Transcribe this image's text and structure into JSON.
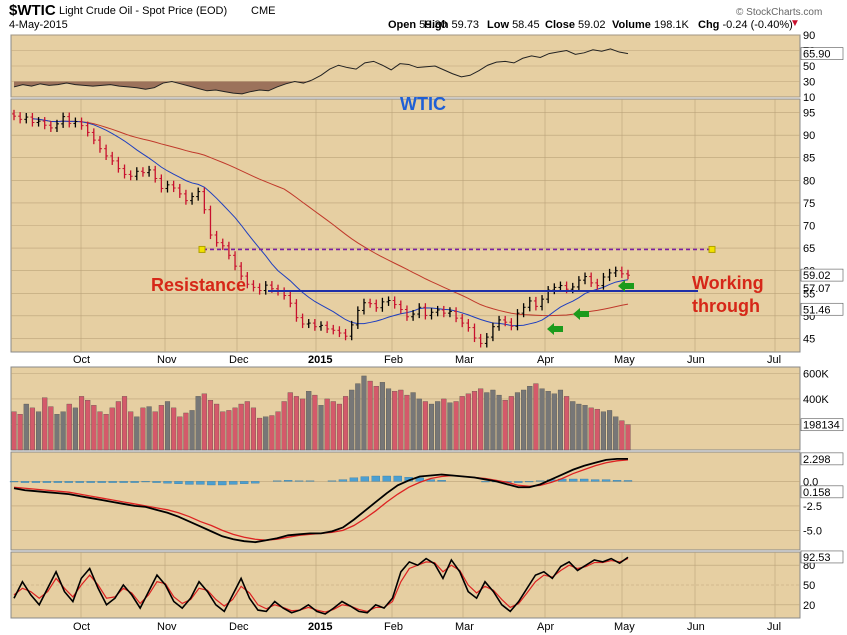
{
  "header": {
    "symbol": "$WTIC",
    "name": "Light Crude Oil - Spot Price (EOD)",
    "exchange": "CME",
    "date": "4-May-2015",
    "ohlc": [
      {
        "label": "Open",
        "value": "59.30"
      },
      {
        "label": "High",
        "value": "59.73"
      },
      {
        "label": "Low",
        "value": "58.45"
      },
      {
        "label": "Close",
        "value": "59.02"
      },
      {
        "label": "Volume",
        "value": "198.1K"
      },
      {
        "label": "Chg",
        "value": "-0.24 (-0.40%)"
      }
    ],
    "watermark": "© StockCharts.com"
  },
  "colors": {
    "panel_bg": "#e6cfa2",
    "up": "#000000",
    "down": "#c8102e",
    "sma_short": "#1f3fbf",
    "sma_long": "#c0392b",
    "resistance": "#1e2fa8",
    "dashed": "#7b1fa2",
    "arrow": "#1c9b1c",
    "vol_up": "#777777",
    "vol_down": "#d45a6a",
    "hist": "#4b9fd1",
    "annotation": "#d62718",
    "title_blue": "#1f5fd6"
  },
  "annotations": {
    "title": "WTIC",
    "resistance": "Resistance",
    "working_line1": "Working",
    "working_line2": "through"
  },
  "chart_data": [
    {
      "id": "rsi",
      "type": "line",
      "ylim": [
        10,
        90
      ],
      "tick_labels": [
        "90",
        "70",
        "50",
        "30",
        "10"
      ],
      "last_value_label": "65.90",
      "series": [
        {
          "values": [
            23,
            26,
            24,
            27,
            25,
            26,
            28,
            26,
            25,
            24,
            25,
            26,
            24,
            23,
            22,
            20,
            22,
            28,
            30,
            27,
            24,
            21,
            18,
            19,
            17,
            15,
            14,
            17,
            19,
            18,
            23,
            27,
            30,
            28,
            32,
            38,
            46,
            51,
            48,
            46,
            54,
            56,
            51,
            45,
            53,
            52,
            48,
            49,
            50,
            45,
            40,
            36,
            38,
            44,
            51,
            55,
            56,
            54,
            60,
            63,
            61,
            66,
            68,
            70,
            65,
            67,
            71,
            69,
            72,
            68,
            66
          ]
        }
      ]
    },
    {
      "id": "price",
      "type": "candlestick",
      "title": "WTIC",
      "ylim": [
        42,
        98
      ],
      "tick_labels": [
        "95",
        "90",
        "85",
        "80",
        "75",
        "70",
        "65",
        "60",
        "55",
        "50",
        "45"
      ],
      "x_labels": [
        "Oct",
        "Nov",
        "Dec",
        "2015",
        "Feb",
        "Mar",
        "Apr",
        "May",
        "Jun",
        "Jul"
      ],
      "close_values": [
        94.2,
        93.5,
        94.0,
        92.8,
        93.1,
        92.2,
        91.6,
        92.5,
        94.1,
        92.6,
        93.0,
        92.1,
        90.6,
        88.9,
        87.0,
        85.4,
        84.3,
        82.6,
        81.3,
        80.9,
        82.0,
        81.7,
        82.3,
        80.4,
        78.2,
        79.0,
        78.3,
        77.0,
        75.5,
        76.4,
        77.5,
        73.5,
        67.9,
        66.2,
        65.5,
        63.4,
        61.0,
        58.8,
        57.0,
        56.3,
        55.6,
        56.8,
        56.0,
        55.4,
        54.5,
        52.8,
        49.6,
        48.2,
        48.4,
        47.6,
        47.9,
        47.1,
        46.8,
        46.2,
        45.5,
        48.0,
        51.2,
        52.9,
        52.7,
        51.8,
        53.1,
        53.4,
        52.5,
        51.4,
        49.8,
        50.4,
        51.9,
        50.1,
        50.8,
        51.3,
        50.6,
        51.0,
        49.5,
        48.4,
        47.4,
        45.1,
        43.9,
        45.3,
        47.6,
        49.1,
        48.6,
        47.7,
        50.6,
        51.9,
        53.3,
        52.1,
        53.7,
        55.7,
        56.3,
        56.7,
        55.9,
        56.4,
        57.9,
        58.7,
        57.3,
        56.7,
        58.6,
        59.5,
        60.0,
        59.3,
        59.0
      ],
      "last_price_label": "59.02",
      "sma_short_label": "57.07",
      "sma_long_label": "51.46",
      "resistance_level": 55.5,
      "dashed_level": 64.7
    },
    {
      "id": "volume",
      "type": "bar",
      "tick_labels": [
        "600K",
        "400K",
        "200K"
      ],
      "last_value_label": "198134",
      "values": [
        300,
        280,
        360,
        330,
        300,
        410,
        340,
        280,
        300,
        360,
        330,
        420,
        390,
        350,
        300,
        280,
        330,
        380,
        420,
        300,
        260,
        330,
        340,
        300,
        350,
        380,
        330,
        260,
        290,
        310,
        420,
        440,
        390,
        360,
        300,
        310,
        330,
        360,
        380,
        330,
        250,
        260,
        270,
        300,
        380,
        450,
        420,
        400,
        460,
        430,
        350,
        400,
        380,
        360,
        420,
        470,
        520,
        580,
        540,
        500,
        530,
        480,
        460,
        470,
        430,
        450,
        400,
        380,
        360,
        380,
        400,
        370,
        380,
        420,
        440,
        460,
        480,
        450,
        470,
        430,
        390,
        420,
        450,
        470,
        500,
        520,
        480,
        460,
        440,
        470,
        420,
        380,
        360,
        350,
        330,
        320,
        300,
        310,
        260,
        230,
        198
      ]
    },
    {
      "id": "macd",
      "type": "line",
      "ylim": [
        -7,
        3
      ],
      "tick_labels": [
        "0.0",
        "-2.5",
        "-5.0"
      ],
      "macd_label": "2.298",
      "hist_label": "0.158",
      "series": [
        {
          "values": [
            -0.7,
            -0.9,
            -1.0,
            -1.1,
            -1.2,
            -1.3,
            -1.5,
            -1.7,
            -1.9,
            -2.1,
            -2.3,
            -2.5,
            -2.6,
            -2.9,
            -3.2,
            -3.6,
            -4.1,
            -4.6,
            -5.1,
            -5.6,
            -5.9,
            -6.1,
            -6.2,
            -6.0,
            -5.8,
            -5.5,
            -5.4,
            -5.3,
            -5.3,
            -5.1,
            -4.7,
            -3.9,
            -3.0,
            -2.1,
            -1.2,
            -0.4,
            0.1,
            0.5,
            0.6,
            0.7,
            0.6,
            0.5,
            0.4,
            0.2,
            0.0,
            -0.3,
            -0.6,
            -0.6,
            -0.3,
            0.2,
            0.7,
            1.2,
            1.6,
            1.9,
            2.2,
            2.3,
            2.3
          ]
        },
        {
          "values": [
            -0.6,
            -0.7,
            -0.8,
            -0.9,
            -1.0,
            -1.1,
            -1.3,
            -1.5,
            -1.7,
            -1.9,
            -2.1,
            -2.3,
            -2.5,
            -2.7,
            -2.9,
            -3.2,
            -3.6,
            -4.1,
            -4.5,
            -5.0,
            -5.4,
            -5.7,
            -5.9,
            -6.0,
            -5.9,
            -5.7,
            -5.5,
            -5.4,
            -5.3,
            -5.2,
            -5.0,
            -4.5,
            -3.8,
            -3.0,
            -2.1,
            -1.3,
            -0.6,
            -0.1,
            0.3,
            0.5,
            0.6,
            0.5,
            0.4,
            0.3,
            0.1,
            -0.1,
            -0.4,
            -0.5,
            -0.4,
            -0.1,
            0.3,
            0.8,
            1.2,
            1.6,
            1.9,
            2.1,
            2.2
          ]
        },
        {
          "values": [
            -0.1,
            -0.2,
            -0.2,
            -0.2,
            -0.2,
            -0.2,
            -0.2,
            -0.2,
            -0.2,
            -0.2,
            -0.2,
            -0.2,
            -0.1,
            -0.2,
            -0.3,
            -0.4,
            -0.5,
            -0.5,
            -0.6,
            -0.6,
            -0.5,
            -0.4,
            -0.3,
            0.0,
            0.1,
            0.2,
            0.1,
            0.1,
            0.0,
            0.1,
            0.3,
            0.6,
            0.8,
            0.9,
            0.9,
            0.9,
            0.7,
            0.6,
            0.3,
            0.2,
            0.0,
            0.0,
            0.0,
            -0.1,
            -0.1,
            -0.2,
            -0.2,
            -0.1,
            0.1,
            0.3,
            0.4,
            0.4,
            0.4,
            0.3,
            0.3,
            0.2,
            0.16
          ]
        }
      ]
    },
    {
      "id": "stochastic",
      "type": "line",
      "ylim": [
        0,
        100
      ],
      "tick_labels": [
        "80",
        "50",
        "20"
      ],
      "last_value_label": "92.53",
      "x_labels": [
        "Oct",
        "Nov",
        "Dec",
        "2015",
        "Feb",
        "Mar",
        "Apr",
        "May",
        "Jun",
        "Jul"
      ],
      "series": [
        {
          "values": [
            30,
            55,
            35,
            20,
            45,
            70,
            40,
            25,
            60,
            75,
            45,
            20,
            30,
            50,
            35,
            15,
            40,
            65,
            50,
            25,
            15,
            30,
            55,
            40,
            20,
            10,
            35,
            60,
            30,
            12,
            10,
            25,
            15,
            8,
            12,
            20,
            10,
            6,
            15,
            25,
            18,
            10,
            8,
            20,
            15,
            30,
            70,
            85,
            80,
            90,
            82,
            60,
            88,
            70,
            40,
            30,
            55,
            40,
            20,
            10,
            25,
            45,
            65,
            70,
            60,
            78,
            85,
            72,
            80,
            88,
            85,
            90,
            83,
            92
          ]
        },
        {
          "values": [
            35,
            45,
            40,
            30,
            40,
            60,
            45,
            32,
            50,
            65,
            50,
            30,
            32,
            45,
            38,
            22,
            35,
            55,
            52,
            32,
            22,
            28,
            45,
            42,
            28,
            18,
            28,
            48,
            38,
            20,
            14,
            20,
            16,
            11,
            12,
            16,
            12,
            9,
            13,
            20,
            18,
            13,
            10,
            16,
            16,
            25,
            55,
            75,
            80,
            85,
            84,
            70,
            80,
            72,
            50,
            38,
            48,
            42,
            28,
            16,
            22,
            38,
            55,
            65,
            62,
            72,
            80,
            75,
            78,
            84,
            84,
            87,
            85,
            90
          ]
        }
      ]
    }
  ]
}
